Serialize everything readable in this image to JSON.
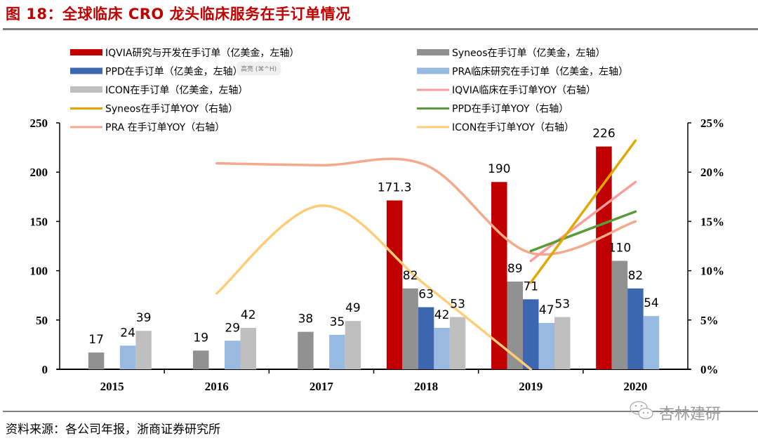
{
  "header": {
    "title": "图 18：全球临床 CRO 龙头临床服务在手订单情况"
  },
  "footer": {
    "source": "资料来源：各公司年报，浙商证券研究所",
    "watermark": "杏林建研",
    "watermark_icon": "wechat-icon"
  },
  "overlay": {
    "tooltip": "高亮 (⌘^H)"
  },
  "chart_data": {
    "type": "bar",
    "title": "图 18：全球临床 CRO 龙头临床服务在手订单情况",
    "categories": [
      "2015",
      "2016",
      "2017",
      "2018",
      "2019",
      "2020"
    ],
    "left_axis": {
      "label": "亿美金",
      "ylim": [
        0,
        250
      ],
      "ticks": [
        "0",
        "50",
        "100",
        "150",
        "200",
        "250"
      ]
    },
    "right_axis": {
      "label": "YOY",
      "ylim": [
        0,
        25
      ],
      "ticks": [
        "0%",
        "5%",
        "10%",
        "15%",
        "20%",
        "25%"
      ]
    },
    "grid": false,
    "legend_position": "top",
    "bar_series": [
      {
        "name": "IQVIA研究与开发在手订单（亿美金，左轴）",
        "color": "#c00000",
        "values": [
          null,
          null,
          null,
          171.3,
          190,
          226
        ],
        "labels": [
          "",
          "",
          "",
          "171.3",
          "190",
          "226"
        ]
      },
      {
        "name": "Syneos在手订单（亿美金，左轴）",
        "color": "#919191",
        "values": [
          17,
          19,
          38,
          82,
          89,
          110
        ],
        "labels": [
          "17",
          "19",
          "38",
          "82",
          "89",
          "110"
        ]
      },
      {
        "name": "PPD在手订单（亿美金，左轴）",
        "color": "#3c67b0",
        "values": [
          null,
          null,
          null,
          63,
          71,
          82
        ],
        "labels": [
          "",
          "",
          "",
          "63",
          "71",
          "82"
        ]
      },
      {
        "name": "PRA临床研究在手订单（亿美金，左轴）",
        "color": "#98b9e0",
        "values": [
          24,
          29,
          35,
          42,
          47,
          54
        ],
        "labels": [
          "24",
          "29",
          "35",
          "42",
          "47",
          "54"
        ]
      },
      {
        "name": "ICON在手订单（亿美金，左轴）",
        "color": "#bfbfbf",
        "values": [
          39,
          42,
          49,
          53,
          53,
          null
        ],
        "labels": [
          "39",
          "42",
          "49",
          "53",
          "53",
          ""
        ]
      }
    ],
    "line_series": [
      {
        "name": "IQVIA临床在手订单YOY（右轴）",
        "color": "#ff9b9b",
        "values": [
          null,
          null,
          null,
          null,
          11,
          19
        ]
      },
      {
        "name": "Syneos在手订单YOY（右轴）",
        "color": "#e0a800",
        "values": [
          null,
          null,
          null,
          null,
          8.8,
          23.2
        ]
      },
      {
        "name": "PPD在手订单YOY（右轴）",
        "color": "#5a9a3a",
        "values": [
          null,
          null,
          null,
          null,
          12,
          16
        ]
      },
      {
        "name": "PRA 在手订单YOY（右轴）",
        "color": "#f4a88c",
        "values": [
          null,
          20.9,
          20.7,
          20.7,
          11.8,
          15
        ]
      },
      {
        "name": "ICON在手订单YOY（右轴）",
        "color": "#ffcc77",
        "values": [
          null,
          7.7,
          16.6,
          8.5,
          0,
          null
        ]
      }
    ],
    "legend": [
      {
        "label": "IQVIA研究与开发在手订单（亿美金，左轴）",
        "kind": "bar",
        "color": "#c00000"
      },
      {
        "label": "Syneos在手订单（亿美金，左轴）",
        "kind": "bar",
        "color": "#919191"
      },
      {
        "label": "PPD在手订单（亿美金，左轴）",
        "kind": "bar",
        "color": "#3c67b0"
      },
      {
        "label": "PRA临床研究在手订单（亿美金，左轴）",
        "kind": "bar",
        "color": "#98b9e0"
      },
      {
        "label": "ICON在手订单（亿美金，左轴）",
        "kind": "bar",
        "color": "#bfbfbf"
      },
      {
        "label": "IQVIA临床在手订单YOY（右轴）",
        "kind": "line",
        "color": "#ff9b9b"
      },
      {
        "label": "Syneos在手订单YOY（右轴）",
        "kind": "line",
        "color": "#e0a800"
      },
      {
        "label": "PPD在手订单YOY（右轴）",
        "kind": "line",
        "color": "#5a9a3a"
      },
      {
        "label": "PRA 在手订单YOY（右轴）",
        "kind": "line",
        "color": "#f4a88c"
      },
      {
        "label": "ICON在手订单YOY（右轴）",
        "kind": "line",
        "color": "#ffcc77"
      }
    ]
  }
}
